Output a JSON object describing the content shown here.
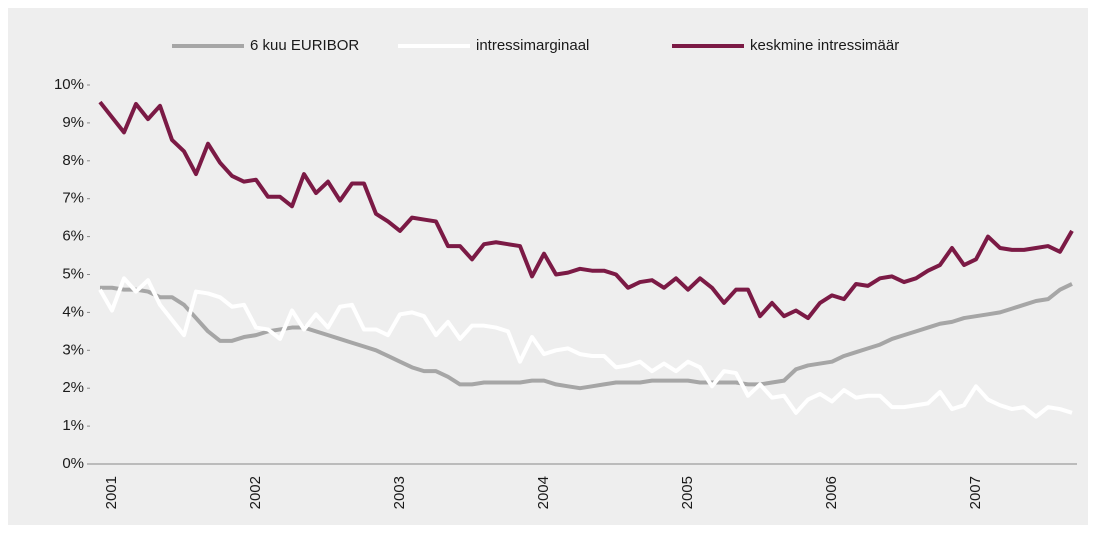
{
  "chart_data": {
    "type": "line",
    "categories": [
      "2001",
      null,
      null,
      null,
      null,
      null,
      null,
      null,
      null,
      null,
      null,
      null,
      "2002",
      null,
      null,
      null,
      null,
      null,
      null,
      null,
      null,
      null,
      null,
      null,
      "2003",
      null,
      null,
      null,
      null,
      null,
      null,
      null,
      null,
      null,
      null,
      null,
      "2004",
      null,
      null,
      null,
      null,
      null,
      null,
      null,
      null,
      null,
      null,
      null,
      "2005",
      null,
      null,
      null,
      null,
      null,
      null,
      null,
      null,
      null,
      null,
      null,
      "2006",
      null,
      null,
      null,
      null,
      null,
      null,
      null,
      null,
      null,
      null,
      null,
      "2007",
      null,
      null,
      null,
      null,
      null,
      null,
      null,
      null,
      null
    ],
    "series": [
      {
        "name": "6 kuu EURIBOR",
        "color": "#a6a6a6",
        "values": [
          4.65,
          4.65,
          4.6,
          4.6,
          4.55,
          4.4,
          4.4,
          4.2,
          3.85,
          3.5,
          3.25,
          3.25,
          3.35,
          3.4,
          3.5,
          3.55,
          3.6,
          3.6,
          3.5,
          3.4,
          3.3,
          3.2,
          3.1,
          3.0,
          2.85,
          2.7,
          2.55,
          2.45,
          2.45,
          2.3,
          2.1,
          2.1,
          2.15,
          2.15,
          2.15,
          2.15,
          2.2,
          2.2,
          2.1,
          2.05,
          2.0,
          2.05,
          2.1,
          2.15,
          2.15,
          2.15,
          2.2,
          2.2,
          2.2,
          2.2,
          2.15,
          2.15,
          2.15,
          2.15,
          2.1,
          2.1,
          2.15,
          2.2,
          2.5,
          2.6,
          2.65,
          2.7,
          2.85,
          2.95,
          3.05,
          3.15,
          3.3,
          3.4,
          3.5,
          3.6,
          3.7,
          3.75,
          3.85,
          3.9,
          3.95,
          4.0,
          4.1,
          4.2,
          4.3,
          4.35,
          4.6,
          4.75
        ]
      },
      {
        "name": "intressimarginaal",
        "color": "#ffffff",
        "values": [
          4.6,
          4.05,
          4.9,
          4.55,
          4.85,
          4.2,
          3.8,
          3.4,
          4.55,
          4.5,
          4.4,
          4.15,
          4.2,
          3.6,
          3.55,
          3.3,
          4.05,
          3.55,
          3.95,
          3.6,
          4.15,
          4.2,
          3.55,
          3.55,
          3.4,
          3.95,
          4.0,
          3.9,
          3.4,
          3.75,
          3.3,
          3.65,
          3.65,
          3.6,
          3.5,
          2.7,
          3.35,
          2.9,
          3.0,
          3.05,
          2.9,
          2.85,
          2.85,
          2.55,
          2.6,
          2.7,
          2.45,
          2.65,
          2.45,
          2.7,
          2.55,
          2.05,
          2.45,
          2.4,
          1.8,
          2.1,
          1.75,
          1.8,
          1.35,
          1.7,
          1.85,
          1.65,
          1.95,
          1.75,
          1.8,
          1.8,
          1.5,
          1.5,
          1.55,
          1.6,
          1.9,
          1.45,
          1.55,
          2.05,
          1.7,
          1.55,
          1.45,
          1.5,
          1.25,
          1.5,
          1.45,
          1.35
        ]
      },
      {
        "name": "keskmine intressimäär",
        "color": "#7b1a45",
        "values": [
          9.55,
          9.15,
          8.75,
          9.5,
          9.1,
          9.45,
          8.55,
          8.25,
          7.65,
          8.45,
          7.95,
          7.6,
          7.45,
          7.5,
          7.05,
          7.05,
          6.8,
          7.65,
          7.15,
          7.45,
          6.95,
          7.4,
          7.4,
          6.6,
          6.4,
          6.15,
          6.5,
          6.45,
          6.4,
          5.75,
          5.75,
          5.4,
          5.8,
          5.85,
          5.8,
          5.75,
          4.95,
          5.55,
          5.0,
          5.05,
          5.15,
          5.1,
          5.1,
          5.0,
          4.65,
          4.8,
          4.85,
          4.65,
          4.9,
          4.6,
          4.9,
          4.65,
          4.25,
          4.6,
          4.6,
          3.9,
          4.25,
          3.9,
          4.05,
          3.85,
          4.25,
          4.45,
          4.35,
          4.75,
          4.7,
          4.9,
          4.95,
          4.8,
          4.9,
          5.1,
          5.25,
          5.7,
          5.25,
          5.4,
          6.0,
          5.7,
          5.65,
          5.65,
          5.7,
          5.75,
          5.6,
          6.15
        ]
      }
    ],
    "ylim": [
      0,
      10
    ],
    "yticks": [
      {
        "value": 0,
        "label": "0%"
      },
      {
        "value": 1,
        "label": "1%"
      },
      {
        "value": 2,
        "label": "2%"
      },
      {
        "value": 3,
        "label": "3%"
      },
      {
        "value": 4,
        "label": "4%"
      },
      {
        "value": 5,
        "label": "5%"
      },
      {
        "value": 6,
        "label": "6%"
      },
      {
        "value": 7,
        "label": "7%"
      },
      {
        "value": 8,
        "label": "8%"
      },
      {
        "value": 9,
        "label": "9%"
      },
      {
        "value": 10,
        "label": "10%"
      }
    ],
    "legend": "top"
  }
}
